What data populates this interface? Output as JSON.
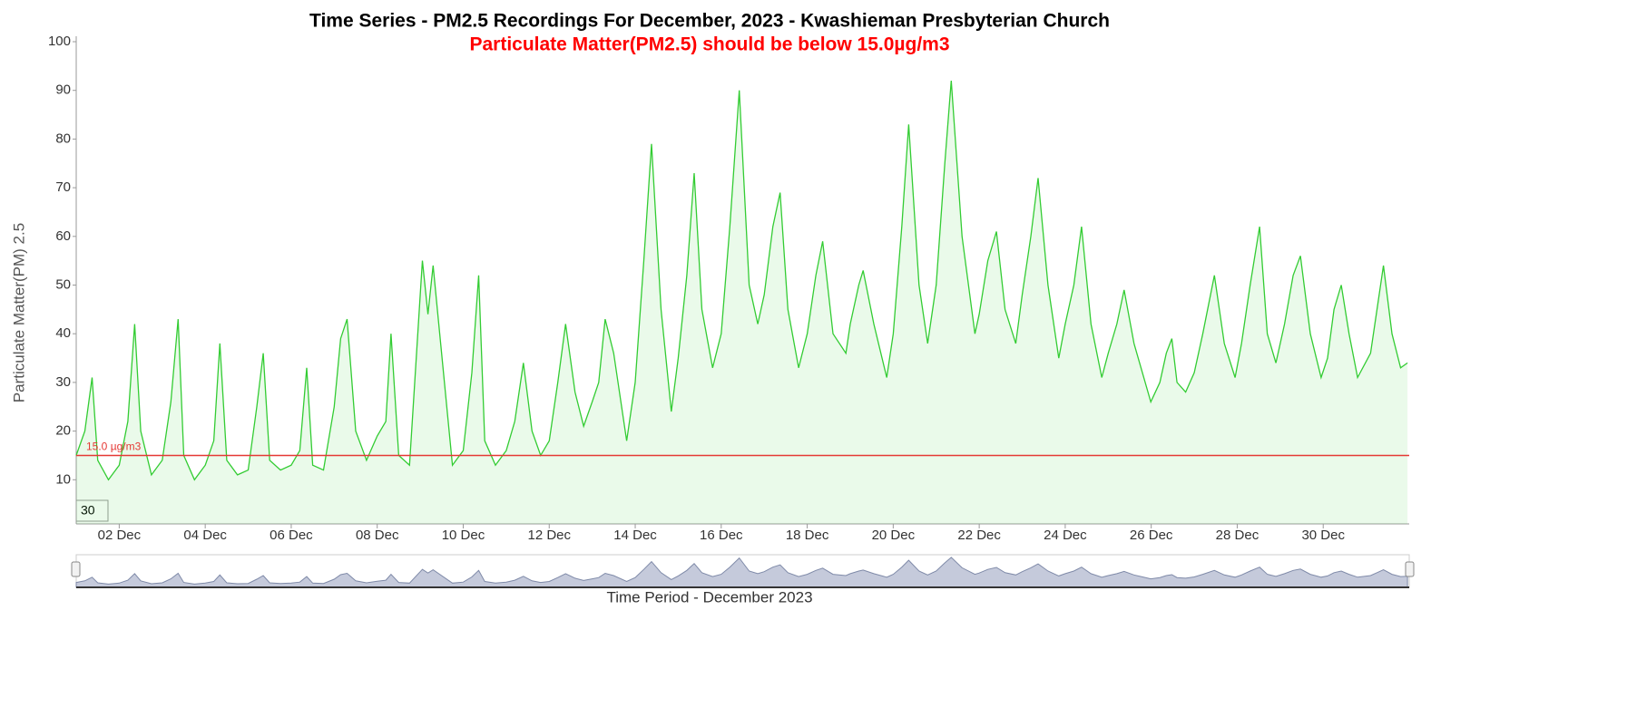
{
  "chart_data": {
    "type": "line",
    "title": "Time Series - PM2.5 Recordings For December, 2023 - Kwashieman Presbyterian Church",
    "subtitle": "Particulate Matter(PM2.5) should be below 15.0µg/m3",
    "y_label": "Particulate Matter(PM) 2.5",
    "x_label": "Time Period - December 2023",
    "threshold": {
      "value": 15,
      "label": "15.0 µg/m3",
      "color": "#e53935"
    },
    "zoom_input": "30",
    "xlim": [
      1,
      32
    ],
    "xticks": [
      {
        "value": 2,
        "label": "02 Dec"
      },
      {
        "value": 4,
        "label": "04 Dec"
      },
      {
        "value": 6,
        "label": "06 Dec"
      },
      {
        "value": 8,
        "label": "08 Dec"
      },
      {
        "value": 10,
        "label": "10 Dec"
      },
      {
        "value": 12,
        "label": "12 Dec"
      },
      {
        "value": 14,
        "label": "14 Dec"
      },
      {
        "value": 16,
        "label": "16 Dec"
      },
      {
        "value": 18,
        "label": "18 Dec"
      },
      {
        "value": 20,
        "label": "20 Dec"
      },
      {
        "value": 22,
        "label": "22 Dec"
      },
      {
        "value": 24,
        "label": "24 Dec"
      },
      {
        "value": 26,
        "label": "26 Dec"
      },
      {
        "value": 28,
        "label": "28 Dec"
      },
      {
        "value": 30,
        "label": "30 Dec"
      }
    ],
    "ylim": [
      0,
      100
    ],
    "yticks": [
      10,
      20,
      30,
      40,
      50,
      60,
      70,
      80,
      90,
      100
    ],
    "series": [
      {
        "name": "PM2.5",
        "color": "#33cc33",
        "x": [
          1.0,
          1.2,
          1.37,
          1.5,
          1.75,
          2.0,
          2.2,
          2.36,
          2.5,
          2.75,
          3.0,
          3.2,
          3.37,
          3.5,
          3.75,
          4.0,
          4.2,
          4.34,
          4.5,
          4.75,
          5.0,
          5.2,
          5.35,
          5.5,
          5.75,
          6.0,
          6.2,
          6.36,
          6.5,
          6.75,
          7.0,
          7.15,
          7.3,
          7.5,
          7.75,
          8.0,
          8.2,
          8.32,
          8.5,
          8.75,
          9.0,
          9.05,
          9.18,
          9.3,
          9.75,
          10.0,
          10.2,
          10.36,
          10.5,
          10.75,
          11.0,
          11.2,
          11.4,
          11.6,
          11.8,
          12.0,
          12.2,
          12.38,
          12.6,
          12.8,
          13.0,
          13.15,
          13.3,
          13.5,
          13.8,
          14.0,
          14.2,
          14.38,
          14.6,
          14.84,
          15.0,
          15.2,
          15.37,
          15.55,
          15.8,
          16.0,
          16.2,
          16.42,
          16.65,
          16.85,
          17.0,
          17.2,
          17.37,
          17.55,
          17.8,
          18.0,
          18.2,
          18.36,
          18.6,
          18.9,
          19.0,
          19.2,
          19.3,
          19.55,
          19.85,
          20.0,
          20.2,
          20.36,
          20.6,
          20.8,
          21.0,
          21.2,
          21.35,
          21.6,
          21.9,
          22.0,
          22.2,
          22.4,
          22.6,
          22.85,
          23.0,
          23.2,
          23.37,
          23.6,
          23.85,
          24.0,
          24.2,
          24.38,
          24.6,
          24.85,
          25.0,
          25.2,
          25.37,
          25.6,
          25.99,
          26.2,
          26.35,
          26.48,
          26.6,
          26.8,
          27.0,
          27.2,
          27.47,
          27.7,
          27.95,
          28.1,
          28.3,
          28.52,
          28.7,
          28.9,
          29.1,
          29.3,
          29.47,
          29.7,
          29.95,
          30.1,
          30.25,
          30.42,
          30.6,
          30.8,
          31.1,
          31.25,
          31.4,
          31.6,
          31.8,
          31.96
        ],
        "values": [
          15,
          20,
          31,
          14,
          10,
          13,
          22,
          42,
          20,
          11,
          14,
          26,
          43,
          15,
          10,
          13,
          18,
          38,
          14,
          11,
          12,
          25,
          36,
          14,
          12,
          13,
          16,
          33,
          13,
          12,
          25,
          39,
          43,
          20,
          14,
          19,
          22,
          40,
          15,
          13,
          48,
          55,
          44,
          54,
          13,
          16,
          32,
          52,
          18,
          13,
          16,
          22,
          34,
          20,
          15,
          18,
          30,
          42,
          28,
          21,
          26,
          30,
          43,
          36,
          18,
          30,
          55,
          79,
          45,
          24,
          35,
          52,
          73,
          45,
          33,
          40,
          62,
          90,
          50,
          42,
          48,
          62,
          69,
          45,
          33,
          40,
          52,
          59,
          40,
          36,
          42,
          50,
          53,
          42,
          31,
          40,
          62,
          83,
          50,
          38,
          50,
          75,
          92,
          60,
          40,
          44,
          55,
          61,
          45,
          38,
          48,
          60,
          72,
          50,
          35,
          42,
          50,
          62,
          42,
          31,
          36,
          42,
          49,
          38,
          26,
          30,
          36,
          39,
          30,
          28,
          32,
          40,
          52,
          38,
          31,
          38,
          50,
          62,
          40,
          34,
          42,
          52,
          56,
          40,
          31,
          35,
          45,
          50,
          40,
          31,
          36,
          45,
          54,
          40,
          33,
          34
        ]
      }
    ]
  }
}
